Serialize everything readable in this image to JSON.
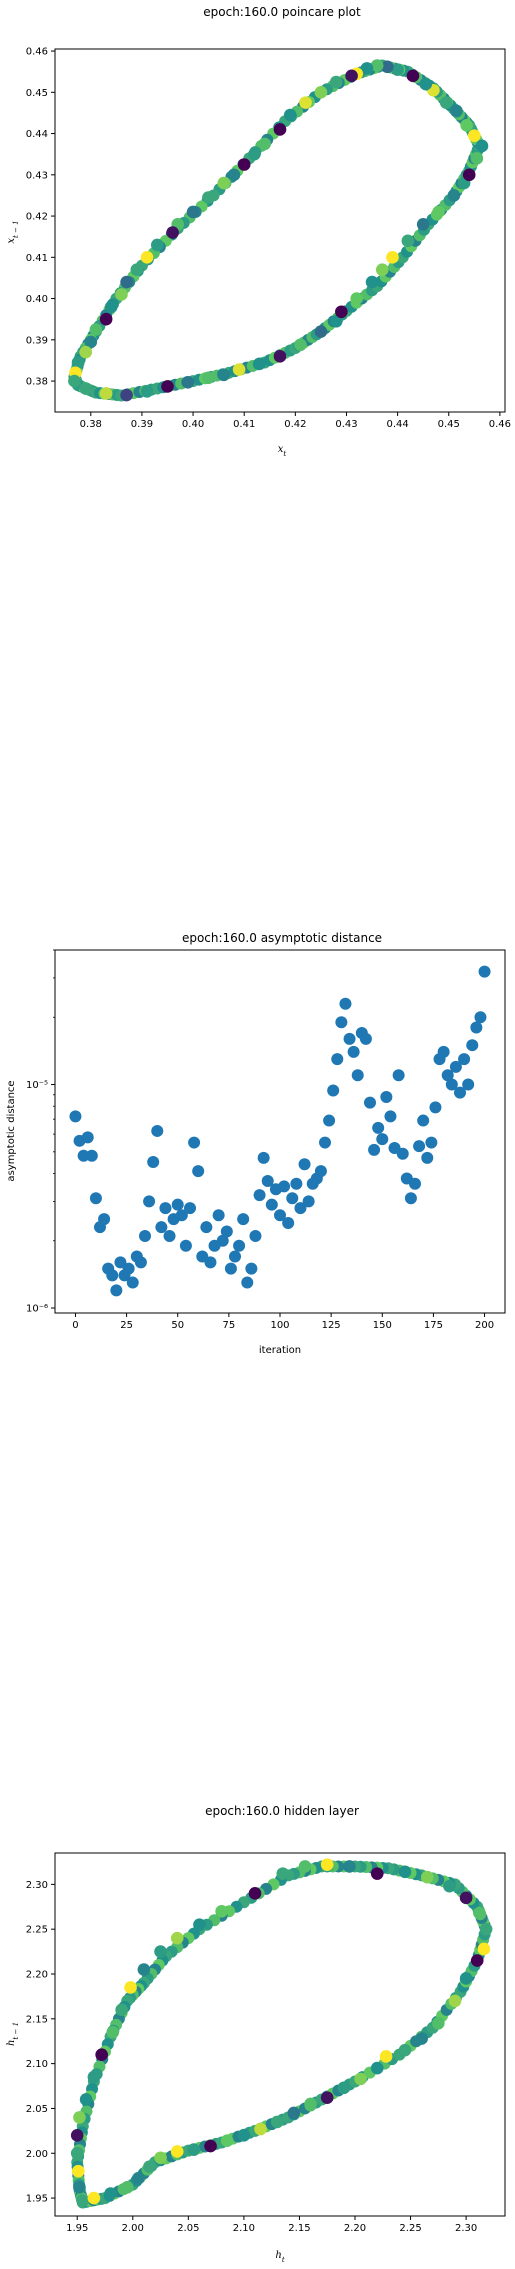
{
  "colors": {
    "viridis_dark": "#440154",
    "viridis_mid": "#21918c",
    "viridis_light": "#5ec962",
    "viridis_yellow": "#fde725",
    "scatter_blue": "#1f77b4",
    "axis": "#000000"
  },
  "chart_data": [
    {
      "type": "scatter",
      "title": "epoch:160.0 poincare plot",
      "xlabel": "x_t",
      "ylabel": "x_{t-1}",
      "xlim": [
        0.373,
        0.461
      ],
      "ylim": [
        0.3725,
        0.4605
      ],
      "xticks": [
        0.38,
        0.39,
        0.4,
        0.41,
        0.42,
        0.43,
        0.44,
        0.45,
        0.46
      ],
      "xtick_labels": [
        "0.38",
        "0.39",
        "0.40",
        "0.41",
        "0.42",
        "0.43",
        "0.44",
        "0.45",
        "0.46"
      ],
      "yticks": [
        0.38,
        0.39,
        0.4,
        0.41,
        0.42,
        0.43,
        0.44,
        0.45,
        0.46
      ],
      "ytick_labels": [
        "0.38",
        "0.39",
        "0.40",
        "0.41",
        "0.42",
        "0.43",
        "0.44",
        "0.45",
        "0.46"
      ],
      "colormap": "viridis",
      "curve": [
        [
          0.3775,
          0.379
        ],
        [
          0.381,
          0.3772
        ],
        [
          0.386,
          0.3765
        ],
        [
          0.393,
          0.3782
        ],
        [
          0.4,
          0.38
        ],
        [
          0.407,
          0.382
        ],
        [
          0.414,
          0.3845
        ],
        [
          0.42,
          0.388
        ],
        [
          0.425,
          0.392
        ],
        [
          0.43,
          0.397
        ],
        [
          0.436,
          0.403
        ],
        [
          0.441,
          0.41
        ],
        [
          0.446,
          0.418
        ],
        [
          0.451,
          0.425
        ],
        [
          0.454,
          0.431
        ],
        [
          0.456,
          0.437
        ],
        [
          0.454,
          0.442
        ],
        [
          0.451,
          0.446
        ],
        [
          0.447,
          0.451
        ],
        [
          0.442,
          0.455
        ],
        [
          0.437,
          0.4565
        ],
        [
          0.432,
          0.4545
        ],
        [
          0.425,
          0.45
        ],
        [
          0.418,
          0.443
        ],
        [
          0.411,
          0.434
        ],
        [
          0.404,
          0.425
        ],
        [
          0.397,
          0.417
        ],
        [
          0.39,
          0.408
        ],
        [
          0.385,
          0.4
        ],
        [
          0.381,
          0.392
        ],
        [
          0.378,
          0.386
        ],
        [
          0.3768,
          0.381
        ],
        [
          0.3775,
          0.379
        ]
      ],
      "points": [
        {
          "x": 0.379,
          "y": 0.3782,
          "c": 0.6
        },
        {
          "x": 0.383,
          "y": 0.377,
          "c": 0.9
        },
        {
          "x": 0.387,
          "y": 0.3766,
          "c": 0.2
        },
        {
          "x": 0.391,
          "y": 0.3775,
          "c": 0.55
        },
        {
          "x": 0.395,
          "y": 0.3787,
          "c": 0.0
        },
        {
          "x": 0.399,
          "y": 0.3797,
          "c": 0.4
        },
        {
          "x": 0.403,
          "y": 0.3808,
          "c": 0.7
        },
        {
          "x": 0.406,
          "y": 0.3815,
          "c": 0.45
        },
        {
          "x": 0.409,
          "y": 0.3828,
          "c": 0.95
        },
        {
          "x": 0.413,
          "y": 0.3842,
          "c": 0.5
        },
        {
          "x": 0.417,
          "y": 0.386,
          "c": 0.05
        },
        {
          "x": 0.421,
          "y": 0.3888,
          "c": 0.7
        },
        {
          "x": 0.425,
          "y": 0.392,
          "c": 0.35
        },
        {
          "x": 0.428,
          "y": 0.3945,
          "c": 0.5
        },
        {
          "x": 0.429,
          "y": 0.3968,
          "c": 0.0
        },
        {
          "x": 0.432,
          "y": 0.4,
          "c": 0.75
        },
        {
          "x": 0.435,
          "y": 0.404,
          "c": 0.5
        },
        {
          "x": 0.437,
          "y": 0.407,
          "c": 0.8
        },
        {
          "x": 0.439,
          "y": 0.41,
          "c": 1.0
        },
        {
          "x": 0.442,
          "y": 0.414,
          "c": 0.6
        },
        {
          "x": 0.445,
          "y": 0.418,
          "c": 0.4
        },
        {
          "x": 0.448,
          "y": 0.421,
          "c": 0.75
        },
        {
          "x": 0.451,
          "y": 0.425,
          "c": 0.45
        },
        {
          "x": 0.453,
          "y": 0.428,
          "c": 0.55
        },
        {
          "x": 0.454,
          "y": 0.43,
          "c": 0.0
        },
        {
          "x": 0.4555,
          "y": 0.434,
          "c": 0.7
        },
        {
          "x": 0.4565,
          "y": 0.437,
          "c": 0.5
        },
        {
          "x": 0.455,
          "y": 0.4395,
          "c": 1.0
        },
        {
          "x": 0.4535,
          "y": 0.442,
          "c": 0.75
        },
        {
          "x": 0.4515,
          "y": 0.4455,
          "c": 0.45
        },
        {
          "x": 0.4495,
          "y": 0.4475,
          "c": 0.6
        },
        {
          "x": 0.447,
          "y": 0.4505,
          "c": 0.95
        },
        {
          "x": 0.4455,
          "y": 0.452,
          "c": 0.5
        },
        {
          "x": 0.443,
          "y": 0.454,
          "c": 0.0
        },
        {
          "x": 0.44,
          "y": 0.4555,
          "c": 0.55
        },
        {
          "x": 0.438,
          "y": 0.4562,
          "c": 0.35
        },
        {
          "x": 0.436,
          "y": 0.4565,
          "c": 0.7
        },
        {
          "x": 0.434,
          "y": 0.4558,
          "c": 0.5
        },
        {
          "x": 0.432,
          "y": 0.4545,
          "c": 1.0
        },
        {
          "x": 0.431,
          "y": 0.454,
          "c": 0.05
        },
        {
          "x": 0.428,
          "y": 0.4525,
          "c": 0.6
        },
        {
          "x": 0.425,
          "y": 0.45,
          "c": 0.8
        },
        {
          "x": 0.422,
          "y": 0.4475,
          "c": 0.95
        },
        {
          "x": 0.419,
          "y": 0.4445,
          "c": 0.5
        },
        {
          "x": 0.417,
          "y": 0.441,
          "c": 0.0
        },
        {
          "x": 0.414,
          "y": 0.4375,
          "c": 0.7
        },
        {
          "x": 0.412,
          "y": 0.435,
          "c": 0.55
        },
        {
          "x": 0.41,
          "y": 0.4325,
          "c": 0.0
        },
        {
          "x": 0.408,
          "y": 0.43,
          "c": 0.45
        },
        {
          "x": 0.406,
          "y": 0.428,
          "c": 0.8
        },
        {
          "x": 0.403,
          "y": 0.4245,
          "c": 0.6
        },
        {
          "x": 0.4,
          "y": 0.421,
          "c": 0.4
        },
        {
          "x": 0.397,
          "y": 0.418,
          "c": 0.7
        },
        {
          "x": 0.396,
          "y": 0.416,
          "c": 0.05
        },
        {
          "x": 0.393,
          "y": 0.413,
          "c": 0.55
        },
        {
          "x": 0.391,
          "y": 0.41,
          "c": 1.0
        },
        {
          "x": 0.389,
          "y": 0.407,
          "c": 0.6
        },
        {
          "x": 0.387,
          "y": 0.404,
          "c": 0.35
        },
        {
          "x": 0.386,
          "y": 0.401,
          "c": 0.8
        },
        {
          "x": 0.384,
          "y": 0.398,
          "c": 0.5
        },
        {
          "x": 0.383,
          "y": 0.395,
          "c": 0.0
        },
        {
          "x": 0.381,
          "y": 0.3925,
          "c": 0.7
        },
        {
          "x": 0.38,
          "y": 0.3895,
          "c": 0.45
        },
        {
          "x": 0.379,
          "y": 0.387,
          "c": 0.85
        },
        {
          "x": 0.3775,
          "y": 0.3845,
          "c": 0.55
        },
        {
          "x": 0.377,
          "y": 0.382,
          "c": 1.0
        },
        {
          "x": 0.3768,
          "y": 0.38,
          "c": 0.6
        }
      ]
    },
    {
      "type": "scatter",
      "title": "epoch:160.0 asymptotic distance",
      "xlabel": "iteration",
      "ylabel": "asymptotic distance",
      "yscale": "log",
      "xlim": [
        -10,
        210
      ],
      "ylim": [
        9.5e-07,
        4e-05
      ],
      "xticks": [
        0,
        25,
        50,
        75,
        100,
        125,
        150,
        175,
        200
      ],
      "xtick_labels": [
        "0",
        "25",
        "50",
        "75",
        "100",
        "125",
        "150",
        "175",
        "200"
      ],
      "yticks_major": [
        1e-06,
        1e-05
      ],
      "ytick_labels": [
        "10⁻⁶",
        "10⁻⁵"
      ],
      "color": "#1f77b4",
      "x": [
        0,
        2,
        4,
        6,
        8,
        10,
        12,
        14,
        16,
        18,
        20,
        22,
        24,
        26,
        28,
        30,
        32,
        34,
        36,
        38,
        40,
        42,
        44,
        46,
        48,
        50,
        52,
        54,
        56,
        58,
        60,
        62,
        64,
        66,
        68,
        70,
        72,
        74,
        76,
        78,
        80,
        82,
        84,
        86,
        88,
        90,
        92,
        94,
        96,
        98,
        100,
        102,
        104,
        106,
        108,
        110,
        112,
        114,
        116,
        118,
        120,
        122,
        124,
        126,
        128,
        130,
        132,
        134,
        136,
        138,
        140,
        142,
        144,
        146,
        148,
        150,
        152,
        154,
        156,
        158,
        160,
        162,
        164,
        166,
        168,
        170,
        172,
        174,
        176,
        178,
        180,
        182,
        184,
        186,
        188,
        190,
        192,
        194,
        196,
        198,
        200
      ],
      "y": [
        7.2e-06,
        5.6e-06,
        4.8e-06,
        5.8e-06,
        4.8e-06,
        3.1e-06,
        2.3e-06,
        2.5e-06,
        1.5e-06,
        1.4e-06,
        1.2e-06,
        1.6e-06,
        1.4e-06,
        1.5e-06,
        1.3e-06,
        1.7e-06,
        1.6e-06,
        2.1e-06,
        3e-06,
        4.5e-06,
        6.2e-06,
        2.3e-06,
        2.8e-06,
        2.1e-06,
        2.5e-06,
        2.9e-06,
        2.6e-06,
        1.9e-06,
        2.8e-06,
        5.5e-06,
        4.1e-06,
        1.7e-06,
        2.3e-06,
        1.6e-06,
        1.9e-06,
        2.6e-06,
        2e-06,
        2.2e-06,
        1.5e-06,
        1.7e-06,
        1.9e-06,
        2.5e-06,
        1.3e-06,
        1.5e-06,
        2.1e-06,
        3.2e-06,
        4.7e-06,
        3.7e-06,
        2.9e-06,
        3.4e-06,
        2.6e-06,
        3.5e-06,
        2.4e-06,
        3.1e-06,
        3.6e-06,
        2.8e-06,
        4.4e-06,
        3e-06,
        3.6e-06,
        3.8e-06,
        4.1e-06,
        5.5e-06,
        6.9e-06,
        9.4e-06,
        1.3e-05,
        1.9e-05,
        2.3e-05,
        1.6e-05,
        1.4e-05,
        1.1e-05,
        1.7e-05,
        1.6e-05,
        8.3e-06,
        5.1e-06,
        6.4e-06,
        5.7e-06,
        8.8e-06,
        7.2e-06,
        5.2e-06,
        1.1e-05,
        4.9e-06,
        3.8e-06,
        3.1e-06,
        3.6e-06,
        5.3e-06,
        6.9e-06,
        4.7e-06,
        5.5e-06,
        7.9e-06,
        1.3e-05,
        1.4e-05,
        1.1e-05,
        1e-05,
        1.2e-05,
        9.2e-06,
        1.3e-05,
        1e-05,
        1.5e-05,
        1.8e-05,
        2e-05,
        3.2e-05
      ]
    },
    {
      "type": "scatter",
      "title": "epoch:160.0 hidden layer",
      "xlabel": "h_t",
      "ylabel": "h_{t-1}",
      "xlim": [
        1.93,
        2.335
      ],
      "ylim": [
        1.93,
        2.335
      ],
      "xticks": [
        1.95,
        2.0,
        2.05,
        2.1,
        2.15,
        2.2,
        2.25,
        2.3
      ],
      "xtick_labels": [
        "1.95",
        "2.00",
        "2.05",
        "2.10",
        "2.15",
        "2.20",
        "2.25",
        "2.30"
      ],
      "yticks": [
        1.95,
        2.0,
        2.05,
        2.1,
        2.15,
        2.2,
        2.25,
        2.3
      ],
      "ytick_labels": [
        "1.95",
        "2.00",
        "2.05",
        "2.10",
        "2.15",
        "2.20",
        "2.25",
        "2.30"
      ],
      "colormap": "viridis",
      "curve": [
        [
          1.955,
          1.945
        ],
        [
          1.975,
          1.95
        ],
        [
          2.0,
          1.965
        ],
        [
          2.02,
          1.99
        ],
        [
          2.05,
          2.003
        ],
        [
          2.08,
          2.012
        ],
        [
          2.11,
          2.025
        ],
        [
          2.14,
          2.04
        ],
        [
          2.17,
          2.06
        ],
        [
          2.2,
          2.08
        ],
        [
          2.24,
          2.11
        ],
        [
          2.27,
          2.14
        ],
        [
          2.295,
          2.18
        ],
        [
          2.31,
          2.215
        ],
        [
          2.318,
          2.25
        ],
        [
          2.31,
          2.275
        ],
        [
          2.29,
          2.3
        ],
        [
          2.26,
          2.31
        ],
        [
          2.23,
          2.318
        ],
        [
          2.2,
          2.32
        ],
        [
          2.17,
          2.32
        ],
        [
          2.14,
          2.31
        ],
        [
          2.1,
          2.28
        ],
        [
          2.06,
          2.25
        ],
        [
          2.03,
          2.22
        ],
        [
          2.01,
          2.19
        ],
        [
          1.995,
          2.17
        ],
        [
          1.98,
          2.13
        ],
        [
          1.965,
          2.08
        ],
        [
          1.955,
          2.03
        ],
        [
          1.95,
          1.99
        ],
        [
          1.952,
          1.96
        ],
        [
          1.955,
          1.945
        ]
      ],
      "points": [
        {
          "x": 1.955,
          "y": 1.947,
          "c": 0.6
        },
        {
          "x": 1.965,
          "y": 1.95,
          "c": 1.0
        },
        {
          "x": 1.98,
          "y": 1.955,
          "c": 0.5
        },
        {
          "x": 1.995,
          "y": 1.962,
          "c": 0.7
        },
        {
          "x": 2.005,
          "y": 1.972,
          "c": 0.45
        },
        {
          "x": 2.015,
          "y": 1.985,
          "c": 0.6
        },
        {
          "x": 2.025,
          "y": 1.995,
          "c": 0.8
        },
        {
          "x": 2.04,
          "y": 2.002,
          "c": 1.0
        },
        {
          "x": 2.055,
          "y": 2.004,
          "c": 0.55
        },
        {
          "x": 2.07,
          "y": 2.008,
          "c": 0.0
        },
        {
          "x": 2.085,
          "y": 2.014,
          "c": 0.75
        },
        {
          "x": 2.1,
          "y": 2.02,
          "c": 0.5
        },
        {
          "x": 2.115,
          "y": 2.027,
          "c": 0.9
        },
        {
          "x": 2.13,
          "y": 2.035,
          "c": 0.6
        },
        {
          "x": 2.145,
          "y": 2.045,
          "c": 0.4
        },
        {
          "x": 2.16,
          "y": 2.055,
          "c": 0.7
        },
        {
          "x": 2.175,
          "y": 2.062,
          "c": 0.05
        },
        {
          "x": 2.19,
          "y": 2.073,
          "c": 0.55
        },
        {
          "x": 2.205,
          "y": 2.083,
          "c": 0.8
        },
        {
          "x": 2.22,
          "y": 2.095,
          "c": 0.5
        },
        {
          "x": 2.228,
          "y": 2.108,
          "c": 1.0
        },
        {
          "x": 2.245,
          "y": 2.115,
          "c": 0.6
        },
        {
          "x": 2.26,
          "y": 2.128,
          "c": 0.45
        },
        {
          "x": 2.275,
          "y": 2.145,
          "c": 0.7
        },
        {
          "x": 2.29,
          "y": 2.17,
          "c": 0.85
        },
        {
          "x": 2.3,
          "y": 2.195,
          "c": 0.5
        },
        {
          "x": 2.31,
          "y": 2.215,
          "c": 0.0
        },
        {
          "x": 2.316,
          "y": 2.228,
          "c": 1.0
        },
        {
          "x": 2.318,
          "y": 2.25,
          "c": 0.6
        },
        {
          "x": 2.312,
          "y": 2.268,
          "c": 0.7
        },
        {
          "x": 2.3,
          "y": 2.285,
          "c": 0.05
        },
        {
          "x": 2.285,
          "y": 2.298,
          "c": 0.55
        },
        {
          "x": 2.265,
          "y": 2.308,
          "c": 0.8
        },
        {
          "x": 2.245,
          "y": 2.314,
          "c": 0.5
        },
        {
          "x": 2.22,
          "y": 2.312,
          "c": 0.0
        },
        {
          "x": 2.195,
          "y": 2.32,
          "c": 0.45
        },
        {
          "x": 2.175,
          "y": 2.322,
          "c": 1.0
        },
        {
          "x": 2.155,
          "y": 2.32,
          "c": 0.7
        },
        {
          "x": 2.135,
          "y": 2.312,
          "c": 0.6
        },
        {
          "x": 2.11,
          "y": 2.29,
          "c": 0.0
        },
        {
          "x": 2.08,
          "y": 2.27,
          "c": 0.75
        },
        {
          "x": 2.06,
          "y": 2.255,
          "c": 0.5
        },
        {
          "x": 2.04,
          "y": 2.24,
          "c": 0.85
        },
        {
          "x": 2.025,
          "y": 2.225,
          "c": 0.55
        },
        {
          "x": 2.01,
          "y": 2.205,
          "c": 0.45
        },
        {
          "x": 1.998,
          "y": 2.185,
          "c": 1.0
        },
        {
          "x": 1.99,
          "y": 2.16,
          "c": 0.6
        },
        {
          "x": 1.982,
          "y": 2.135,
          "c": 0.7
        },
        {
          "x": 1.972,
          "y": 2.11,
          "c": 0.0
        },
        {
          "x": 1.965,
          "y": 2.085,
          "c": 0.55
        },
        {
          "x": 1.958,
          "y": 2.06,
          "c": 0.5
        },
        {
          "x": 1.952,
          "y": 2.04,
          "c": 0.8
        },
        {
          "x": 1.95,
          "y": 2.02,
          "c": 0.05
        },
        {
          "x": 1.95,
          "y": 2.0,
          "c": 0.6
        },
        {
          "x": 1.951,
          "y": 1.98,
          "c": 1.0
        },
        {
          "x": 1.952,
          "y": 1.962,
          "c": 0.45
        }
      ]
    }
  ]
}
